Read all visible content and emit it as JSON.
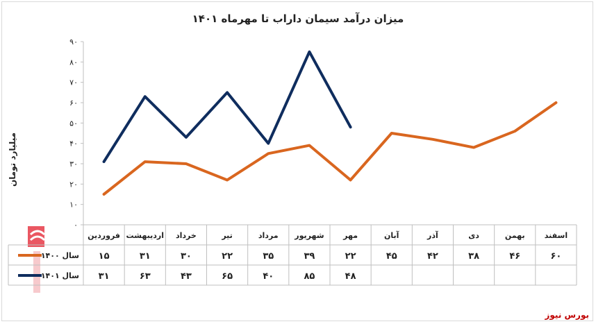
{
  "chart_data": {
    "type": "line",
    "title": "میزان درآمد سیمان داراب تا مهرماه ۱۴۰۱",
    "ylabel": "میلیارد تومان",
    "xlabel": "",
    "ylim": [
      0,
      90
    ],
    "yticks": [
      "۰",
      "۱۰",
      "۲۰",
      "۳۰",
      "۴۰",
      "۵۰",
      "۶۰",
      "۷۰",
      "۸۰",
      "۹۰"
    ],
    "categories": [
      "فروردین",
      "اردیبهشت",
      "خرداد",
      "تیر",
      "مرداد",
      "شهریور",
      "مهر",
      "آبان",
      "آذر",
      "دی",
      "بهمن",
      "اسفند"
    ],
    "series": [
      {
        "name": "سال ۱۴۰۰",
        "color": "#D9661F",
        "values": [
          15,
          31,
          30,
          22,
          35,
          39,
          22,
          45,
          42,
          38,
          46,
          60
        ],
        "labels": [
          "۱۵",
          "۳۱",
          "۳۰",
          "۲۲",
          "۳۵",
          "۳۹",
          "۲۲",
          "۴۵",
          "۴۲",
          "۳۸",
          "۴۶",
          "۶۰"
        ]
      },
      {
        "name": "سال ۱۴۰۱",
        "color": "#0F2D5E",
        "values": [
          31,
          63,
          43,
          65,
          40,
          85,
          48,
          null,
          null,
          null,
          null,
          null
        ],
        "labels": [
          "۳۱",
          "۶۳",
          "۴۳",
          "۶۵",
          "۴۰",
          "۸۵",
          "۴۸",
          "",
          "",
          "",
          "",
          ""
        ]
      }
    ],
    "grid": false,
    "legend": "data-table"
  },
  "source": "بورس نیوز",
  "icons": {
    "logo": "bourse-news-logo"
  }
}
